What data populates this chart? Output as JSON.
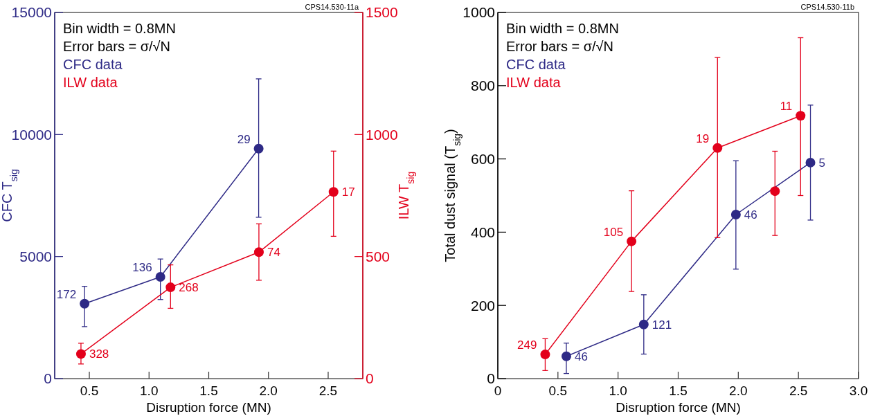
{
  "chart_data": [
    {
      "type": "line",
      "xlabel": "Disruption force (MN)",
      "ylabel": "CFC T$_{sig}$",
      "y2label": "ILW T$_{sig}$",
      "annotations": [
        "CPS14.530-11a",
        "Bin width = 0.8MN",
        "Error bars = σ/√N",
        {
          "text": "172",
          "x": 0.46,
          "y": 3070
        },
        {
          "text": "136",
          "x": 1.095,
          "y": 4170
        },
        {
          "text": "29",
          "x": 1.918,
          "y": 9420
        },
        {
          "text": "328",
          "x": 0.43,
          "y": 1010
        },
        {
          "text": "268",
          "x": 1.18,
          "y": 3740
        },
        {
          "text": "74",
          "x": 1.92,
          "y": 5180
        },
        {
          "text": "17",
          "x": 2.545,
          "y": 7650
        }
      ],
      "xlim": [
        0.21,
        2.79
      ],
      "xticks": [
        0.5,
        {
          "value": 1,
          "label": "1.0"
        },
        1.5,
        {
          "value": 2,
          "label": "2.0"
        },
        2.5
      ],
      "ylim": [
        0,
        15000
      ],
      "yticks": [
        0,
        5000,
        10000,
        15000
      ],
      "y2lim": [
        0,
        1500
      ],
      "y2ticks": [
        0,
        500,
        1000,
        1500
      ],
      "legend": "top left",
      "marker": "circle",
      "line_style": "solid",
      "series": [
        {
          "name": "CFC data",
          "color": "#2e2a86",
          "x": [
            0.46,
            1.095,
            1.918
          ],
          "values": [
            3070,
            4170,
            9420
          ],
          "errors": [
            [
              2130,
              3780
            ],
            [
              3240,
              4900
            ],
            [
              6610,
              12280
            ]
          ]
        },
        {
          "name": "ILW data",
          "color": "#e3001b",
          "axis": "y2",
          "x": [
            0.43,
            1.18,
            1.92,
            2.545
          ],
          "values": [
            101,
            374,
            518,
            765
          ],
          "errors": [
            [
              60,
              145
            ],
            [
              288,
              466
            ],
            [
              403,
              634
            ],
            [
              583,
              932
            ]
          ]
        }
      ]
    },
    {
      "type": "line",
      "xlabel": "Disruption force (MN)",
      "ylabel": "Total dust signal (T$_{sig}$)",
      "annotations": [
        "CPS14.530-11b",
        "Bin width = 0.8MN",
        "Error bars = σ/√N",
        {
          "text": "46",
          "x": 0.57,
          "y": 61
        },
        {
          "text": "121",
          "x": 1.214,
          "y": 148
        },
        {
          "text": "46",
          "x": 1.98,
          "y": 448
        },
        {
          "text": "5",
          "x": 2.6,
          "y": 590
        },
        {
          "text": "249",
          "x": 0.394,
          "y": 66
        },
        {
          "text": "105",
          "x": 1.112,
          "y": 375
        },
        {
          "text": "19",
          "x": 1.827,
          "y": 630
        },
        {
          "text": "11",
          "x": 2.518,
          "y": 718
        }
      ],
      "xlim": [
        0,
        3
      ],
      "xticks": [
        0,
        0.5,
        {
          "value": 1,
          "label": "1.0"
        },
        1.5,
        {
          "value": 2,
          "label": "2.0"
        },
        2.5,
        {
          "value": 3,
          "label": "3.0"
        }
      ],
      "ylim": [
        0,
        1000
      ],
      "yticks": [
        0,
        200,
        400,
        600,
        800,
        1000
      ],
      "legend": "top left",
      "marker": "circle",
      "line_style": "solid",
      "series": [
        {
          "name": "CFC data",
          "color": "#2e2a86",
          "x": [
            0.57,
            1.214,
            1.98,
            2.6
          ],
          "values": [
            61,
            148,
            448,
            590
          ],
          "errors": [
            [
              14,
              97
            ],
            [
              67,
              229
            ],
            [
              299,
              595
            ],
            [
              433,
              747
            ]
          ]
        },
        {
          "name": "ILW data",
          "color": "#e3001b",
          "x": [
            0.394,
            1.112,
            1.827,
            2.518
          ],
          "values": [
            66,
            375,
            630,
            718
          ],
          "errors": [
            [
              22,
              109
            ],
            [
              238,
              513
            ],
            [
              385,
              877
            ],
            [
              500,
              931
            ]
          ]
        },
        {
          "type": "scatter",
          "color": "#e3001b",
          "x": [
            2.305
          ],
          "values": [
            512
          ],
          "errors": [
            [
              391,
              621
            ]
          ]
        }
      ]
    }
  ]
}
